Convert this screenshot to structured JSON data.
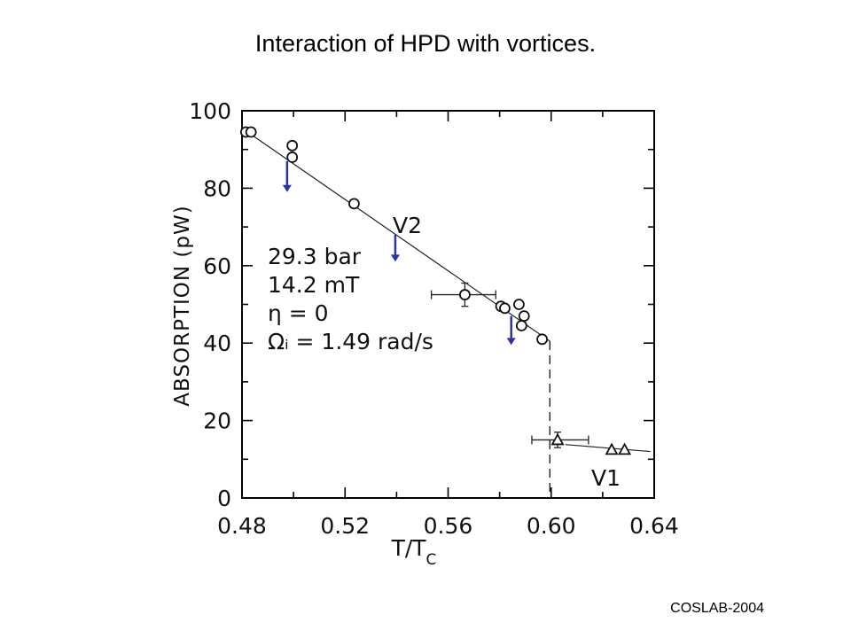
{
  "slide": {
    "title": "Interaction of HPD with vortices.",
    "footer": "COSLAB-2004"
  },
  "chart_data": {
    "type": "scatter",
    "title": "",
    "xlabel": "T/T",
    "xlabel_sub": "C",
    "ylabel": "ABSORPTION (pW)",
    "xlim": [
      0.48,
      0.64
    ],
    "ylim": [
      0,
      100
    ],
    "x_ticks": [
      "0.48",
      "0.52",
      "0.56",
      "0.60",
      "0.64"
    ],
    "y_ticks": [
      "0",
      "20",
      "40",
      "60",
      "80",
      "100"
    ],
    "conditions": [
      "29.3 bar",
      "14.2 mT",
      "η = 0",
      "Ωᵢ = 1.49 rad/s"
    ],
    "series": [
      {
        "name": "V2",
        "marker": "circle",
        "points": [
          [
            0.4815,
            94.5
          ],
          [
            0.4835,
            94.5
          ],
          [
            0.4995,
            91
          ],
          [
            0.4995,
            88
          ],
          [
            0.5235,
            76
          ],
          [
            0.5665,
            52.5
          ],
          [
            0.5805,
            49.5
          ],
          [
            0.582,
            49
          ],
          [
            0.5875,
            50
          ],
          [
            0.5885,
            44.5
          ],
          [
            0.5895,
            47
          ],
          [
            0.5965,
            41
          ]
        ]
      },
      {
        "name": "V1",
        "marker": "triangle",
        "points": [
          [
            0.6025,
            15
          ],
          [
            0.6235,
            12.5
          ],
          [
            0.6285,
            12.5
          ]
        ]
      }
    ],
    "error_bars": [
      {
        "x": 0.5665,
        "y": 52.5,
        "x_err": [
          0.5535,
          0.5785
        ],
        "y_err": [
          49.5,
          55.5
        ]
      },
      {
        "x": 0.6025,
        "y": 15,
        "x_err": [
          0.5925,
          0.6145
        ],
        "y_err": [
          13,
          17
        ]
      }
    ],
    "fit_lines": [
      {
        "x": [
          0.48,
          0.5995
        ],
        "y": [
          95.5,
          40.5
        ]
      },
      {
        "x": [
          0.6055,
          0.6385
        ],
        "y": [
          13.8,
          12
        ]
      }
    ],
    "transition": {
      "x": 0.5995,
      "y_from": 40.5,
      "y_to": 0
    },
    "arrow_positions": [
      {
        "x": 0.4975,
        "y_from": 87,
        "y_to": 79
      },
      {
        "x": 0.5395,
        "y_from": 68,
        "y_to": 61
      },
      {
        "x": 0.5845,
        "y_from": 47,
        "y_to": 39.5
      }
    ],
    "arrow_color": "#2b35a0",
    "grid": false,
    "legend": "none"
  }
}
